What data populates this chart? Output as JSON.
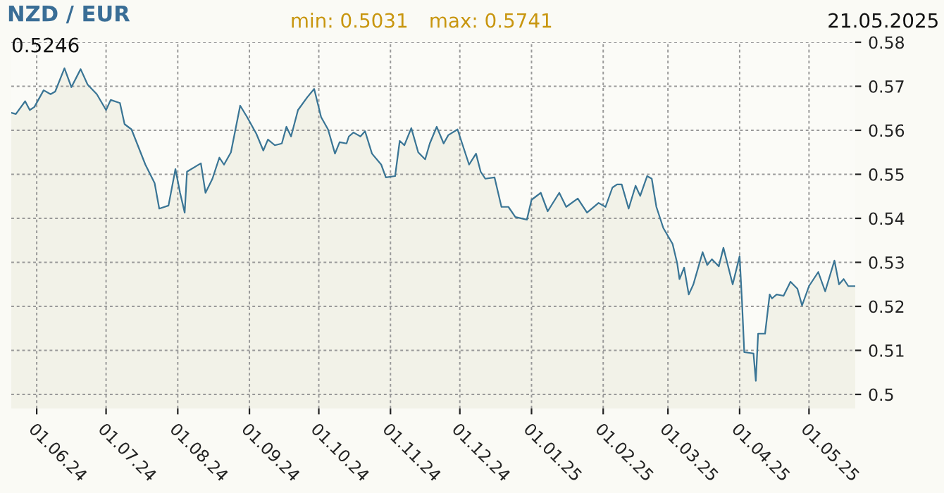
{
  "chart_data": {
    "type": "area",
    "title": "NZD / EUR",
    "annotations": [
      "min: 0.5031",
      "max: 0.5741",
      "21.05.2025",
      "0.5246"
    ],
    "x": [
      "2024-05-21",
      "2024-05-23",
      "2024-05-27",
      "2024-05-29",
      "2024-05-31",
      "2024-06-04",
      "2024-06-07",
      "2024-06-09",
      "2024-06-13",
      "2024-06-16",
      "2024-06-20",
      "2024-06-23",
      "2024-06-27",
      "2024-07-01",
      "2024-07-03",
      "2024-07-07",
      "2024-07-09",
      "2024-07-12",
      "2024-07-18",
      "2024-07-22",
      "2024-07-24",
      "2024-07-28",
      "2024-07-31",
      "2024-08-02",
      "2024-08-04",
      "2024-08-05",
      "2024-08-11",
      "2024-08-13",
      "2024-08-16",
      "2024-08-19",
      "2024-08-21",
      "2024-08-24",
      "2024-08-28",
      "2024-08-31",
      "2024-09-04",
      "2024-09-07",
      "2024-09-09",
      "2024-09-12",
      "2024-09-15",
      "2024-09-17",
      "2024-09-19",
      "2024-09-22",
      "2024-09-26",
      "2024-09-29",
      "2024-10-02",
      "2024-10-05",
      "2024-10-08",
      "2024-10-10",
      "2024-10-13",
      "2024-10-14",
      "2024-10-16",
      "2024-10-19",
      "2024-10-21",
      "2024-10-24",
      "2024-10-28",
      "2024-10-30",
      "2024-11-03",
      "2024-11-05",
      "2024-11-07",
      "2024-11-10",
      "2024-11-13",
      "2024-11-16",
      "2024-11-18",
      "2024-11-21",
      "2024-11-24",
      "2024-11-26",
      "2024-11-30",
      "2024-12-03",
      "2024-12-05",
      "2024-12-08",
      "2024-12-10",
      "2024-12-12",
      "2024-12-16",
      "2024-12-19",
      "2024-12-22",
      "2024-12-25",
      "2024-12-30",
      "2025-01-01",
      "2025-01-05",
      "2025-01-08",
      "2025-01-13",
      "2025-01-16",
      "2025-01-21",
      "2025-01-25",
      "2025-01-30",
      "2025-02-02",
      "2025-02-05",
      "2025-02-07",
      "2025-02-09",
      "2025-02-12",
      "2025-02-15",
      "2025-02-17",
      "2025-02-20",
      "2025-02-22",
      "2025-02-24",
      "2025-02-27",
      "2025-03-03",
      "2025-03-05",
      "2025-03-06",
      "2025-03-08",
      "2025-03-10",
      "2025-03-12",
      "2025-03-16",
      "2025-03-18",
      "2025-03-20",
      "2025-03-23",
      "2025-03-25",
      "2025-03-29",
      "2025-04-01",
      "2025-04-02",
      "2025-04-03",
      "2025-04-07",
      "2025-04-08",
      "2025-04-09",
      "2025-04-12",
      "2025-04-14",
      "2025-04-15",
      "2025-04-17",
      "2025-04-20",
      "2025-04-23",
      "2025-04-26",
      "2025-04-28",
      "2025-05-01",
      "2025-05-05",
      "2025-05-08",
      "2025-05-12",
      "2025-05-14",
      "2025-05-16",
      "2025-05-18",
      "2025-05-21"
    ],
    "series": [
      {
        "color": "#3a7595",
        "values": [
          0.564,
          0.5637,
          0.5666,
          0.5646,
          0.5653,
          0.5691,
          0.5682,
          0.5688,
          0.5741,
          0.5698,
          0.5739,
          0.5704,
          0.5682,
          0.5646,
          0.5669,
          0.5662,
          0.5614,
          0.5602,
          0.5522,
          0.548,
          0.5422,
          0.5429,
          0.5512,
          0.5458,
          0.5413,
          0.5506,
          0.5525,
          0.5458,
          0.549,
          0.5538,
          0.5522,
          0.555,
          0.5656,
          0.563,
          0.5592,
          0.5554,
          0.5579,
          0.5566,
          0.557,
          0.5608,
          0.5586,
          0.5646,
          0.5675,
          0.5694,
          0.563,
          0.5602,
          0.5547,
          0.5573,
          0.557,
          0.5586,
          0.5595,
          0.5586,
          0.5598,
          0.5547,
          0.5522,
          0.5493,
          0.5496,
          0.5576,
          0.5566,
          0.5605,
          0.555,
          0.5534,
          0.557,
          0.5608,
          0.557,
          0.5589,
          0.5602,
          0.5554,
          0.5522,
          0.5547,
          0.5506,
          0.549,
          0.5493,
          0.5426,
          0.5426,
          0.5403,
          0.5397,
          0.5442,
          0.5458,
          0.5416,
          0.5458,
          0.5426,
          0.5445,
          0.5413,
          0.5435,
          0.5426,
          0.547,
          0.5477,
          0.5477,
          0.5422,
          0.5474,
          0.5451,
          0.5496,
          0.549,
          0.5426,
          0.5378,
          0.5342,
          0.5298,
          0.5262,
          0.5288,
          0.5227,
          0.525,
          0.5323,
          0.5294,
          0.5307,
          0.5291,
          0.5333,
          0.525,
          0.5314,
          0.5214,
          0.5096,
          0.5093,
          0.5031,
          0.5138,
          0.5138,
          0.5227,
          0.5218,
          0.5227,
          0.5224,
          0.5256,
          0.524,
          0.5202,
          0.5246,
          0.5278,
          0.5234,
          0.5304,
          0.525,
          0.5262,
          0.5246,
          0.5246
        ]
      }
    ],
    "xlim": [
      "2024-05-21",
      "2025-05-21"
    ],
    "xticks": [
      {
        "value": "2024-06-01",
        "label": "01.06.24"
      },
      {
        "value": "2024-07-01",
        "label": "01.07.24"
      },
      {
        "value": "2024-08-01",
        "label": "01.08.24"
      },
      {
        "value": "2024-09-01",
        "label": "01.09.24"
      },
      {
        "value": "2024-10-01",
        "label": "01.10.24"
      },
      {
        "value": "2024-11-01",
        "label": "01.11.24"
      },
      {
        "value": "2024-12-01",
        "label": "01.12.24"
      },
      {
        "value": "2025-01-01",
        "label": "01.01.25"
      },
      {
        "value": "2025-02-01",
        "label": "01.02.25"
      },
      {
        "value": "2025-03-01",
        "label": "01.03.25"
      },
      {
        "value": "2025-04-01",
        "label": "01.04.25"
      },
      {
        "value": "2025-05-01",
        "label": "01.05.25"
      }
    ],
    "ylim": [
      0.4968,
      0.58
    ],
    "yticks": [
      0.5,
      0.51,
      0.52,
      0.53,
      0.54,
      0.55,
      0.56,
      0.57,
      0.58
    ],
    "grid": true,
    "line_style": "solid"
  }
}
